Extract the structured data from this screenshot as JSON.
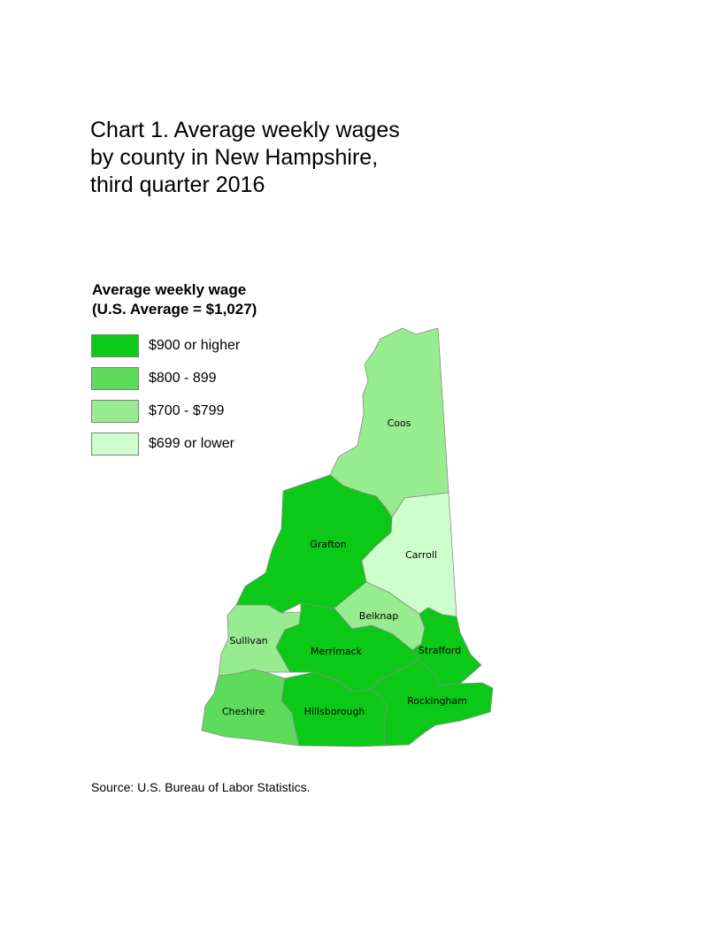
{
  "title_lines": [
    "Chart 1. Average weekly wages",
    "by county in New Hampshire,",
    "third quarter 2016"
  ],
  "legend": {
    "title": "Average weekly wage",
    "subtitle": "(U.S. Average = $1,027)",
    "items": [
      {
        "label": "$900 or higher",
        "color": "#0bc916"
      },
      {
        "label": "$800 - 899",
        "color": "#5cdc5a"
      },
      {
        "label": "$700 - $799",
        "color": "#98ec90"
      },
      {
        "label": "$699 or lower",
        "color": "#ccffcc"
      }
    ]
  },
  "counties": [
    {
      "name": "Coos",
      "wage_class": "$700 - $799",
      "color": "#98ec90"
    },
    {
      "name": "Grafton",
      "wage_class": "$900 or higher",
      "color": "#0bc916"
    },
    {
      "name": "Carroll",
      "wage_class": "$699 or lower",
      "color": "#ccffcc"
    },
    {
      "name": "Belknap",
      "wage_class": "$700 - $799",
      "color": "#98ec90"
    },
    {
      "name": "Sullivan",
      "wage_class": "$700 - $799",
      "color": "#98ec90"
    },
    {
      "name": "Merrimack",
      "wage_class": "$900 or higher",
      "color": "#0bc916"
    },
    {
      "name": "Strafford",
      "wage_class": "$900 or higher",
      "color": "#0bc916"
    },
    {
      "name": "Cheshire",
      "wage_class": "$800 - 899",
      "color": "#5cdc5a"
    },
    {
      "name": "Hillsborough",
      "wage_class": "$900 or higher",
      "color": "#0bc916"
    },
    {
      "name": "Rockingham",
      "wage_class": "$900 or higher",
      "color": "#0bc916"
    }
  ],
  "source": "Source: U.S. Bureau of Labor Statistics."
}
